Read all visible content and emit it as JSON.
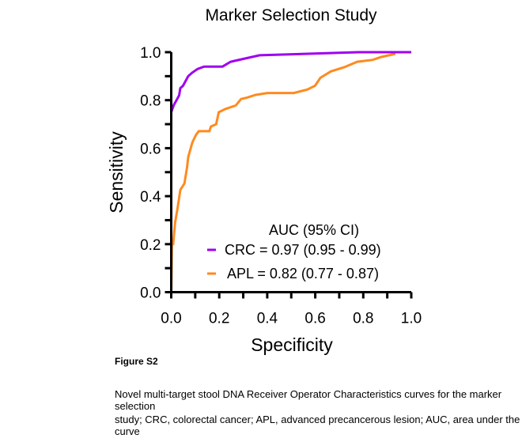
{
  "chart_data": {
    "type": "line",
    "title": "Marker Selection Study",
    "xlabel": "Specificity",
    "ylabel": "Sensitivity",
    "xlim": [
      0,
      1
    ],
    "ylim": [
      0,
      1
    ],
    "xticks": [
      "0.0",
      "0.2",
      "0.4",
      "0.6",
      "0.8",
      "1.0"
    ],
    "yticks": [
      "0.0",
      "0.2",
      "0.4",
      "0.6",
      "0.8",
      "1.0"
    ],
    "grid": false,
    "legend": {
      "title": "AUC (95% CI)",
      "placement": "bottom-right"
    },
    "series": [
      {
        "name": "CRC = 0.97 (0.95 - 0.99)",
        "color": "#a000f0",
        "x": [
          0,
          0,
          0,
          0.011,
          0.022,
          0.033,
          0.038,
          0.049,
          0.06,
          0.071,
          0.088,
          0.11,
          0.137,
          0.214,
          0.247,
          0.269,
          0.313,
          0.368,
          0.555,
          0.78,
          1.0
        ],
        "y": [
          0,
          0.61,
          0.75,
          0.78,
          0.8,
          0.82,
          0.85,
          0.86,
          0.88,
          0.9,
          0.915,
          0.93,
          0.94,
          0.94,
          0.96,
          0.965,
          0.975,
          0.987,
          0.993,
          1.0,
          1.0
        ]
      },
      {
        "name": "APL = 0.82 (0.77 - 0.87)",
        "color": "#ff8a1f",
        "x": [
          0,
          0.003,
          0.008,
          0.016,
          0.027,
          0.038,
          0.055,
          0.066,
          0.071,
          0.088,
          0.104,
          0.115,
          0.159,
          0.165,
          0.187,
          0.198,
          0.225,
          0.269,
          0.291,
          0.313,
          0.352,
          0.401,
          0.511,
          0.566,
          0.599,
          0.621,
          0.665,
          0.72,
          0.775,
          0.84,
          0.874,
          0.929,
          0.929,
          1.0
        ],
        "y": [
          0,
          0.2,
          0.2,
          0.29,
          0.354,
          0.426,
          0.453,
          0.52,
          0.563,
          0.624,
          0.657,
          0.671,
          0.671,
          0.69,
          0.7,
          0.75,
          0.763,
          0.778,
          0.805,
          0.81,
          0.822,
          0.83,
          0.83,
          0.844,
          0.86,
          0.893,
          0.92,
          0.937,
          0.96,
          0.968,
          0.98,
          0.992,
          1.0,
          1.0
        ]
      }
    ]
  },
  "figure_label": "Figure S2",
  "caption_lines": [
    "Novel multi-target stool DNA Receiver Operator Characteristics curves for the marker selection",
    "study; CRC, colorectal cancer; APL, advanced precancerous lesion; AUC, area under the curve"
  ]
}
